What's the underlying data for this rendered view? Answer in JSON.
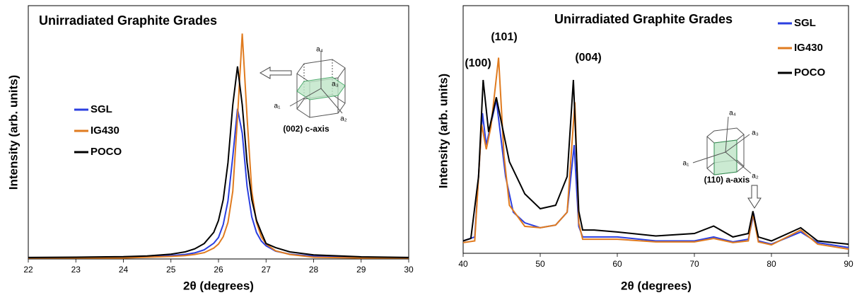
{
  "chart_data": [
    {
      "type": "line",
      "title": "Unirradiated Graphite Grades",
      "x_label": "2θ (degrees)",
      "y_label": "Intensity (arb. units)",
      "xlim": [
        22,
        30
      ],
      "xticks": [
        22,
        23,
        24,
        25,
        26,
        27,
        28,
        29,
        30
      ],
      "ylim": [
        0,
        100
      ],
      "legend": "center left",
      "annotations": [
        "(002) c-axis",
        "a₄",
        "a₃",
        "a₁",
        "a₂"
      ],
      "series": [
        {
          "name": "SGL",
          "color": "#2b3fe0",
          "x": [
            22,
            23,
            24,
            24.5,
            25,
            25.3,
            25.5,
            25.7,
            25.9,
            26.0,
            26.1,
            26.2,
            26.3,
            26.4,
            26.5,
            26.6,
            26.7,
            26.8,
            26.9,
            27.0,
            27.2,
            27.5,
            28,
            29,
            30
          ],
          "values": [
            0.5,
            0.5,
            0.6,
            0.9,
            1.3,
            1.8,
            2.4,
            3.6,
            6.2,
            8.5,
            13.6,
            22.9,
            40.4,
            59.3,
            49.6,
            28.7,
            16.6,
            10.4,
            7.1,
            5.2,
            3.1,
            1.9,
            1.1,
            0.7,
            0.5
          ]
        },
        {
          "name": "IG430",
          "color": "#e07b1f",
          "x": [
            22,
            23,
            24,
            24.5,
            25,
            25.3,
            25.5,
            25.7,
            25.9,
            26.0,
            26.1,
            26.2,
            26.3,
            26.4,
            26.5,
            26.6,
            26.7,
            26.8,
            26.9,
            27.0,
            27.2,
            27.5,
            28,
            29,
            30
          ],
          "values": [
            0.4,
            0.4,
            0.4,
            0.7,
            1.0,
            1.3,
            1.8,
            2.5,
            4.3,
            5.9,
            8.8,
            14.4,
            26.7,
            56,
            89,
            56,
            26.7,
            14.4,
            8.8,
            5.9,
            3.2,
            1.8,
            0.7,
            0.4,
            0.4
          ]
        },
        {
          "name": "POCO",
          "color": "#000000",
          "x": [
            22,
            23,
            24,
            24.5,
            25,
            25.3,
            25.5,
            25.7,
            25.9,
            26.0,
            26.1,
            26.2,
            26.3,
            26.4,
            26.5,
            26.6,
            26.7,
            26.8,
            26.9,
            27.0,
            27.2,
            27.5,
            28,
            29,
            30
          ],
          "values": [
            0.6,
            0.7,
            0.9,
            1.2,
            1.9,
            2.8,
            4,
            6.1,
            10.5,
            15.2,
            23.4,
            38,
            60.8,
            76,
            60.8,
            38,
            23.4,
            15.2,
            10.5,
            6.1,
            4.5,
            2.8,
            1.6,
            0.85,
            0.6
          ]
        }
      ]
    },
    {
      "type": "line",
      "title": "Unirradiated Graphite Grades",
      "x_label": "2θ (degrees)",
      "y_label": "Intensity (arb. units)",
      "xlim": [
        40,
        90
      ],
      "xticks": [
        40,
        50,
        60,
        70,
        80,
        90
      ],
      "ylim": [
        0,
        100
      ],
      "legend": "upper right",
      "annotations": [
        "(100)",
        "(101)",
        "(004)",
        "(110) a-axis",
        "a₄",
        "a₃",
        "a₁",
        "a₂"
      ],
      "series": [
        {
          "name": "SGL",
          "color": "#2b3fe0",
          "x": [
            40,
            41.5,
            42.5,
            43,
            44.3,
            45.5,
            46.5,
            48,
            50,
            52,
            53.5,
            54.4,
            55,
            55.5,
            60,
            65,
            70,
            72.5,
            75,
            77,
            77.7,
            78.3,
            80,
            83.8,
            86,
            90
          ],
          "values": [
            5,
            6.6,
            56.6,
            43.7,
            62,
            31,
            16.6,
            12.3,
            10.3,
            11.4,
            16.6,
            43.7,
            10.9,
            6.6,
            6.6,
            5,
            5,
            6.6,
            4.6,
            5.7,
            16,
            5,
            3.7,
            8.6,
            4.3,
            2.3
          ]
        },
        {
          "name": "IG430",
          "color": "#e07b1f",
          "x": [
            40,
            41.5,
            42.4,
            43,
            43.6,
            44.6,
            45.3,
            46,
            48,
            50,
            52,
            53.5,
            54.5,
            55,
            55.5,
            60,
            65,
            70,
            72.5,
            75,
            77,
            77.6,
            78.3,
            80,
            83.8,
            86,
            90
          ],
          "values": [
            4.3,
            5,
            52,
            42,
            51,
            79,
            39.4,
            19.4,
            10.9,
            10.3,
            11.4,
            16.6,
            61,
            12.3,
            5.7,
            5.7,
            4.6,
            4.6,
            6,
            4.3,
            5,
            16,
            4.6,
            3.4,
            9.4,
            3.7,
            1.7
          ]
        },
        {
          "name": "POCO",
          "color": "#000000",
          "x": [
            40,
            41,
            42,
            42.6,
            43.3,
            44.3,
            46,
            48,
            50,
            52,
            53.5,
            54.3,
            55,
            55.5,
            57,
            60,
            65,
            70,
            72.5,
            75,
            77,
            77.6,
            78.3,
            80,
            83.8,
            86,
            90
          ],
          "values": [
            5,
            6,
            31,
            70,
            49,
            63,
            37,
            24,
            18,
            19.4,
            31,
            70,
            17,
            9.4,
            9.4,
            8.6,
            7,
            8,
            11,
            6.6,
            8,
            17,
            6.6,
            5,
            10.3,
            5,
            3.7
          ]
        }
      ]
    }
  ]
}
